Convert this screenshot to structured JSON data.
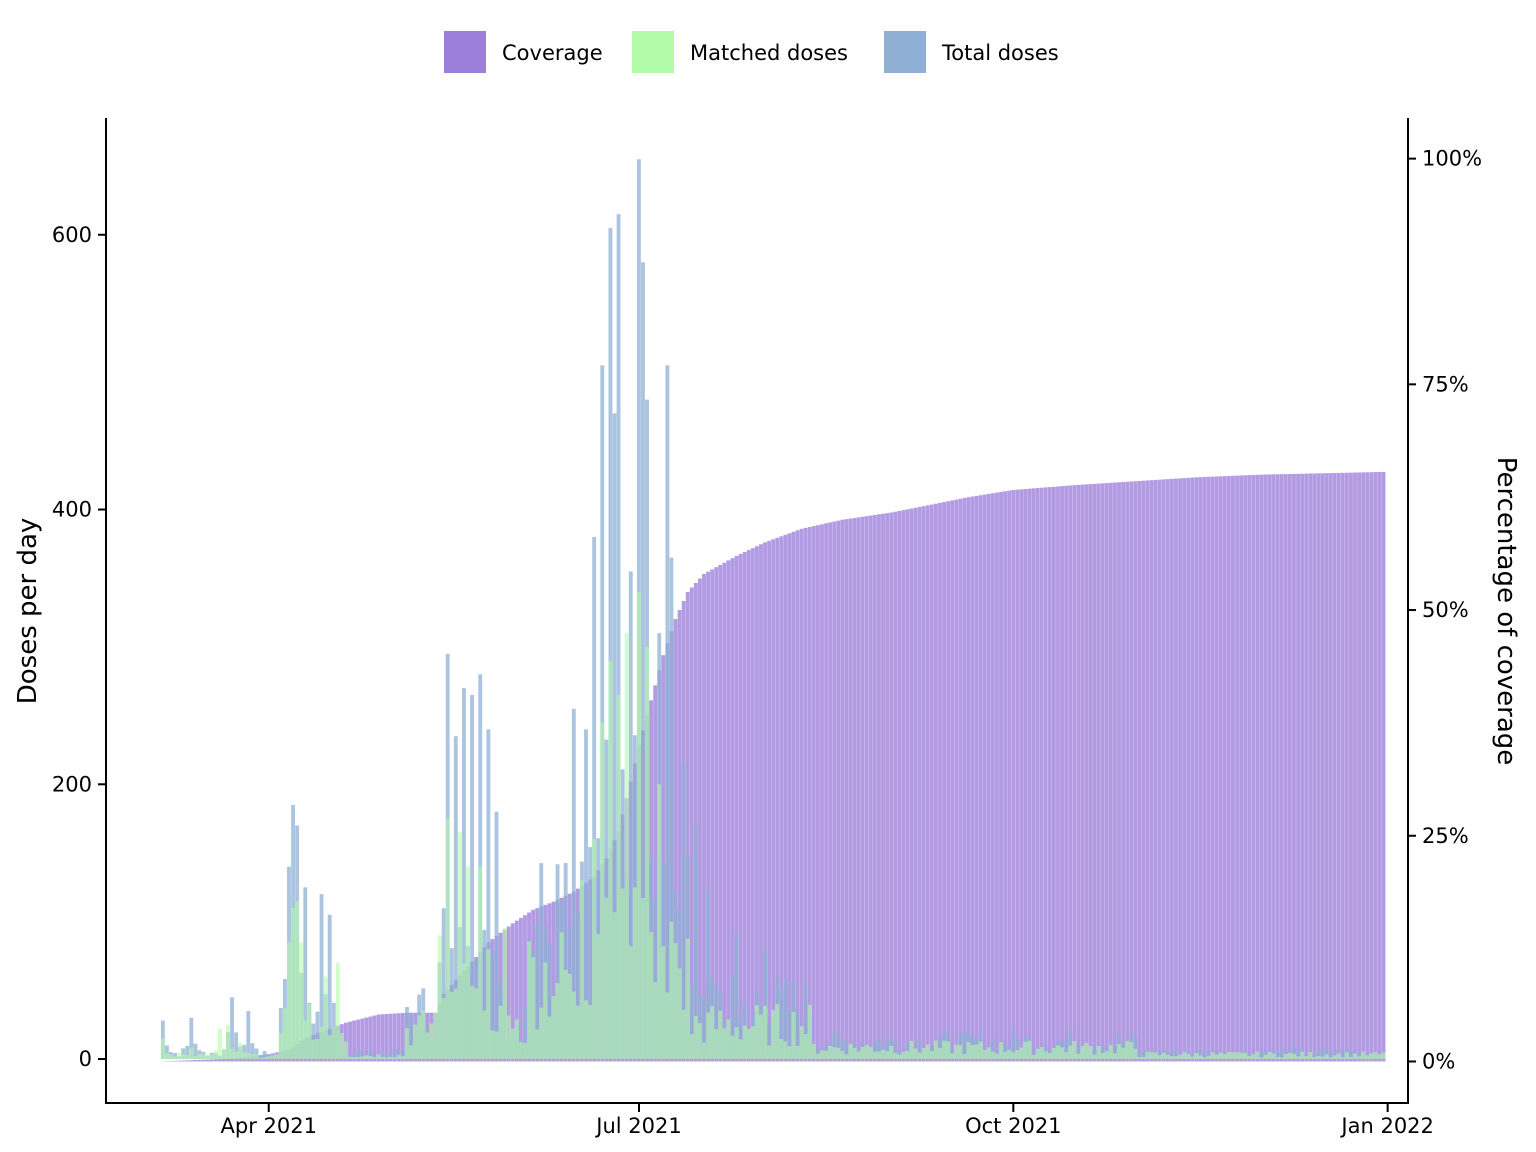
{
  "chart_data": {
    "type": "bar",
    "title": "",
    "xlabel": "",
    "ylabel": "Doses per day",
    "y2label": "Percentage of coverage",
    "x_range": [
      "2021-02-20",
      "2022-01-06"
    ],
    "ylim": [
      -32,
      685
    ],
    "y2lim": [
      -4.6,
      104.5
    ],
    "x_ticks": [
      {
        "date": "2021-04-01",
        "label": "Apr 2021"
      },
      {
        "date": "2021-07-01",
        "label": "Jul 2021"
      },
      {
        "date": "2021-10-01",
        "label": "Oct 2021"
      },
      {
        "date": "2022-01-01",
        "label": "Jan 2022"
      }
    ],
    "y_ticks": [
      0,
      200,
      400,
      600
    ],
    "y2_ticks": [
      {
        "value": 0,
        "label": "0%"
      },
      {
        "value": 25,
        "label": "25%"
      },
      {
        "value": 50,
        "label": "50%"
      },
      {
        "value": 75,
        "label": "75%"
      },
      {
        "value": 100,
        "label": "100%"
      }
    ],
    "grid": false,
    "legend_position": "top",
    "series": [
      {
        "name": "Coverage",
        "axis": "right",
        "color": "#9c7fdb",
        "keyframes": [
          [
            "2021-03-05",
            0
          ],
          [
            "2021-03-22",
            0.3
          ],
          [
            "2021-04-01",
            0.8
          ],
          [
            "2021-04-06",
            1.3
          ],
          [
            "2021-04-10",
            2.6
          ],
          [
            "2021-04-20",
            4.3
          ],
          [
            "2021-04-28",
            5.2
          ],
          [
            "2021-05-05",
            5.4
          ],
          [
            "2021-05-12",
            5.4
          ],
          [
            "2021-05-14",
            7.5
          ],
          [
            "2021-05-20",
            10.5
          ],
          [
            "2021-05-25",
            13.2
          ],
          [
            "2021-05-31",
            15.3
          ],
          [
            "2021-06-05",
            16.8
          ],
          [
            "2021-06-10",
            17.7
          ],
          [
            "2021-06-15",
            18.8
          ],
          [
            "2021-06-20",
            20.5
          ],
          [
            "2021-06-23",
            22.5
          ],
          [
            "2021-06-26",
            25.5
          ],
          [
            "2021-06-29",
            31
          ],
          [
            "2021-07-01",
            35
          ],
          [
            "2021-07-04",
            40
          ],
          [
            "2021-07-07",
            45
          ],
          [
            "2021-07-10",
            49
          ],
          [
            "2021-07-13",
            52
          ],
          [
            "2021-07-17",
            54
          ],
          [
            "2021-07-25",
            56
          ],
          [
            "2021-08-01",
            57.5
          ],
          [
            "2021-08-10",
            59
          ],
          [
            "2021-08-20",
            60
          ],
          [
            "2021-09-01",
            60.8
          ],
          [
            "2021-09-10",
            61.6
          ],
          [
            "2021-09-20",
            62.5
          ],
          [
            "2021-10-01",
            63.3
          ],
          [
            "2021-10-15",
            63.8
          ],
          [
            "2021-11-01",
            64.3
          ],
          [
            "2021-11-15",
            64.7
          ],
          [
            "2021-12-01",
            65
          ],
          [
            "2021-12-31",
            65.3
          ]
        ]
      },
      {
        "name": "Matched doses",
        "axis": "left",
        "color": "#b2fba8",
        "spikes": [
          [
            "2021-03-06",
            15
          ],
          [
            "2021-03-13",
            8
          ],
          [
            "2021-03-20",
            22
          ],
          [
            "2021-03-22",
            25
          ],
          [
            "2021-03-25",
            12
          ],
          [
            "2021-04-06",
            85
          ],
          [
            "2021-04-07",
            110
          ],
          [
            "2021-04-08",
            115
          ],
          [
            "2021-04-09",
            85
          ],
          [
            "2021-04-11",
            40
          ],
          [
            "2021-04-15",
            60
          ],
          [
            "2021-04-18",
            70
          ],
          [
            "2021-05-13",
            90
          ],
          [
            "2021-05-15",
            175
          ],
          [
            "2021-05-18",
            165
          ],
          [
            "2021-05-20",
            140
          ],
          [
            "2021-05-23",
            140
          ],
          [
            "2021-05-25",
            80
          ],
          [
            "2021-05-29",
            95
          ],
          [
            "2021-06-17",
            130
          ],
          [
            "2021-06-20",
            160
          ],
          [
            "2021-06-22",
            245
          ],
          [
            "2021-06-24",
            290
          ],
          [
            "2021-06-26",
            265
          ],
          [
            "2021-06-28",
            310
          ],
          [
            "2021-07-01",
            340
          ],
          [
            "2021-07-03",
            300
          ],
          [
            "2021-07-06",
            200
          ],
          [
            "2021-07-09",
            100
          ]
        ]
      },
      {
        "name": "Total doses",
        "axis": "left",
        "color": "#8fb0d4",
        "spikes": [
          [
            "2021-03-06",
            28
          ],
          [
            "2021-03-13",
            30
          ],
          [
            "2021-03-23",
            45
          ],
          [
            "2021-03-27",
            35
          ],
          [
            "2021-04-06",
            140
          ],
          [
            "2021-04-07",
            185
          ],
          [
            "2021-04-08",
            170
          ],
          [
            "2021-04-10",
            125
          ],
          [
            "2021-04-14",
            120
          ],
          [
            "2021-04-16",
            105
          ],
          [
            "2021-05-15",
            295
          ],
          [
            "2021-05-17",
            235
          ],
          [
            "2021-05-19",
            270
          ],
          [
            "2021-05-21",
            265
          ],
          [
            "2021-05-23",
            280
          ],
          [
            "2021-05-25",
            240
          ],
          [
            "2021-05-27",
            180
          ],
          [
            "2021-06-15",
            255
          ],
          [
            "2021-06-18",
            240
          ],
          [
            "2021-06-20",
            380
          ],
          [
            "2021-06-22",
            505
          ],
          [
            "2021-06-24",
            605
          ],
          [
            "2021-06-25",
            470
          ],
          [
            "2021-06-26",
            615
          ],
          [
            "2021-06-29",
            355
          ],
          [
            "2021-07-01",
            655
          ],
          [
            "2021-07-02",
            580
          ],
          [
            "2021-07-03",
            480
          ],
          [
            "2021-07-06",
            310
          ],
          [
            "2021-07-08",
            505
          ],
          [
            "2021-07-09",
            365
          ],
          [
            "2021-07-12",
            215
          ],
          [
            "2021-07-15",
            170
          ],
          [
            "2021-07-18",
            125
          ],
          [
            "2021-07-25",
            90
          ],
          [
            "2021-08-01",
            80
          ]
        ]
      }
    ]
  }
}
